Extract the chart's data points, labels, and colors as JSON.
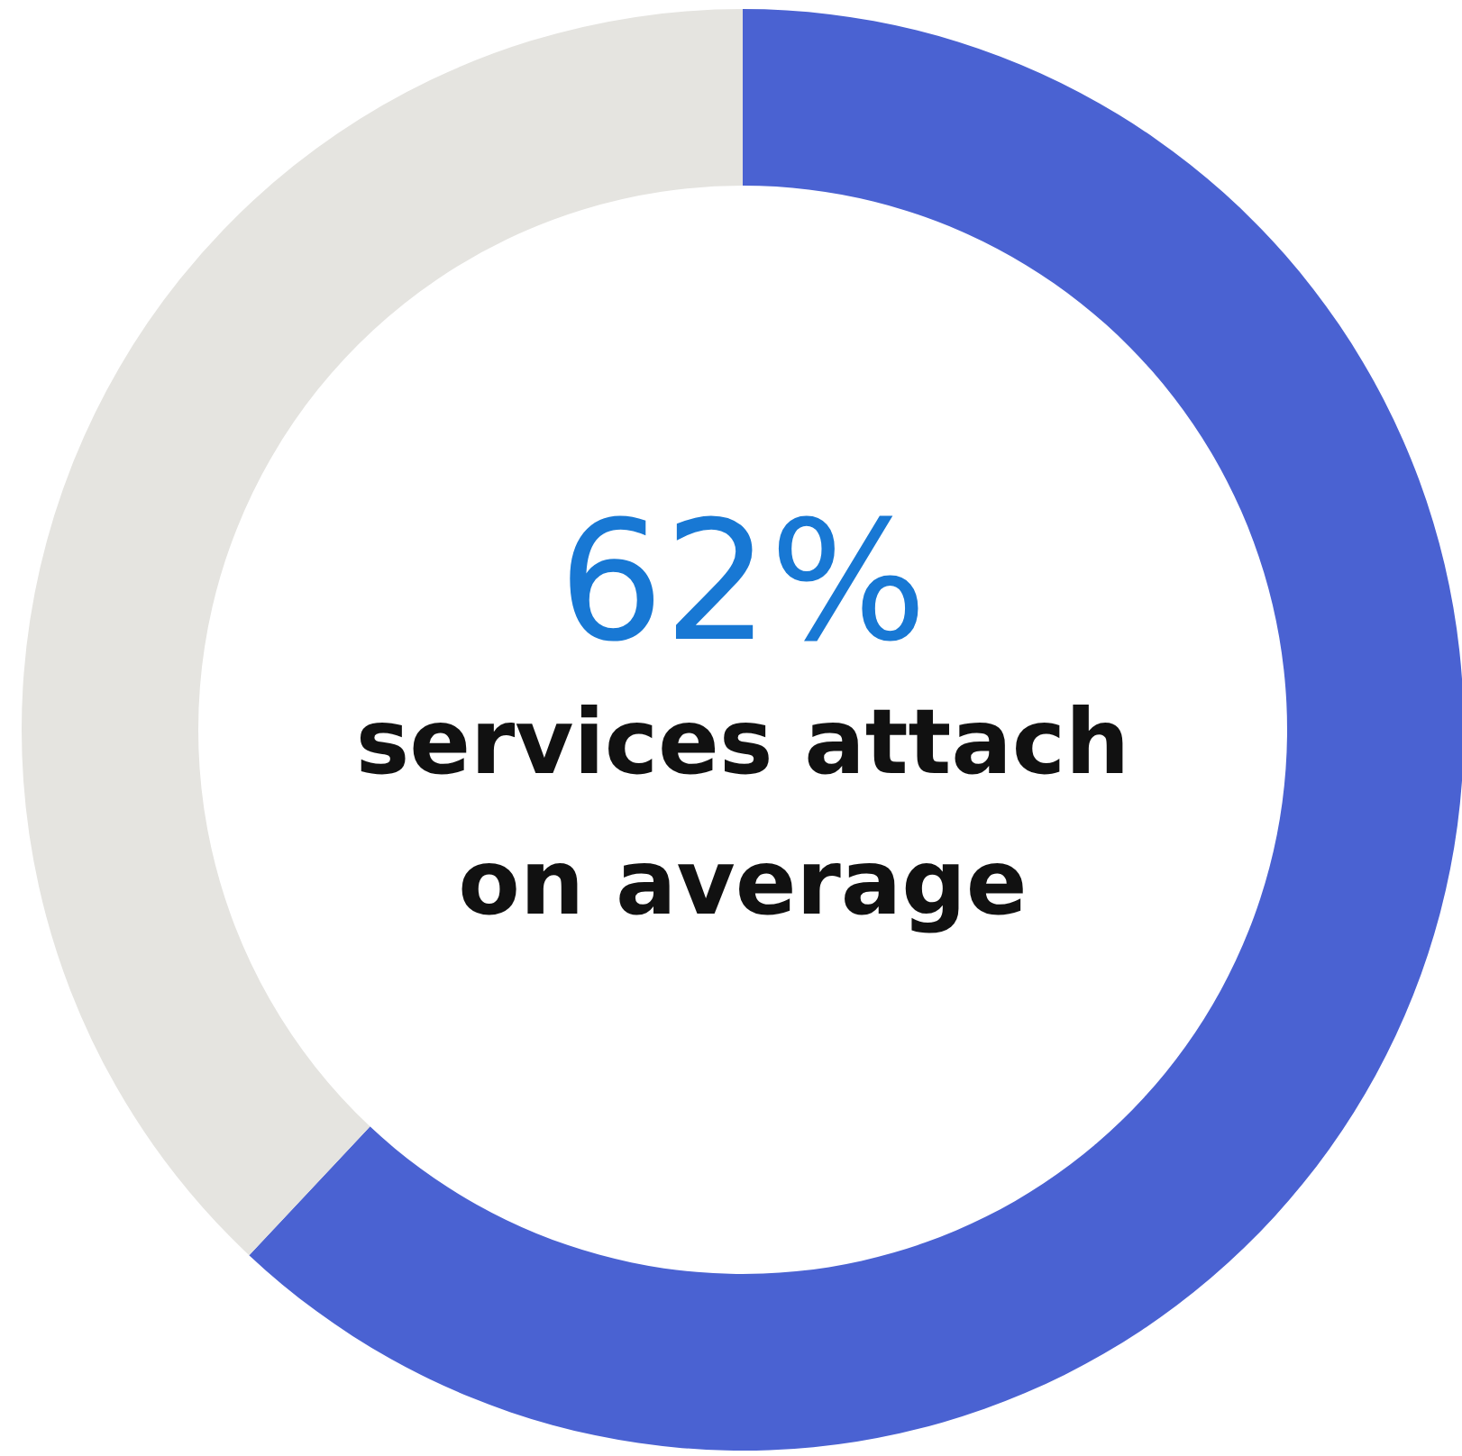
{
  "chart_data": {
    "type": "donut",
    "categories": [
      null,
      null
    ],
    "values": [
      62,
      38
    ],
    "colors": [
      "#4a62d2",
      "#e5e4e0"
    ],
    "value_labels": [
      "62%",
      null
    ],
    "annotations": [
      "services attach",
      "on average"
    ]
  }
}
